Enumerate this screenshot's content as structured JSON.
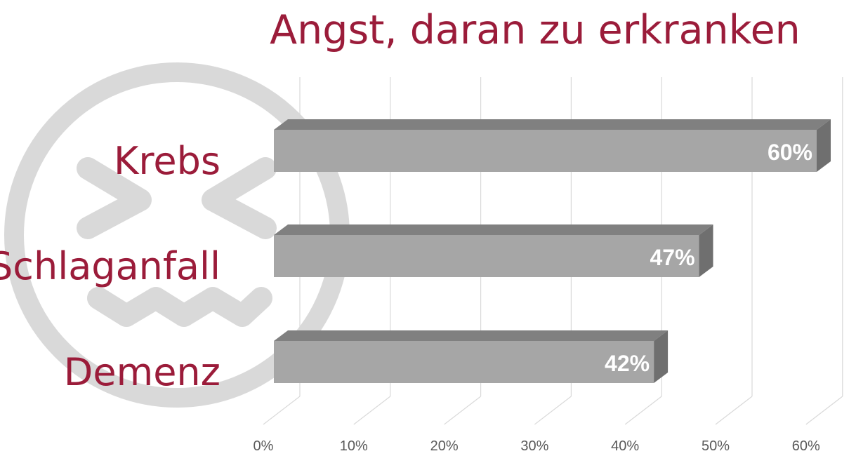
{
  "chart_data": {
    "type": "bar",
    "orientation": "horizontal",
    "style": "3d",
    "title": "Angst, daran zu erkranken",
    "categories": [
      "Krebs",
      "Schlaganfall",
      "Demenz"
    ],
    "values": [
      60,
      47,
      42
    ],
    "data_labels": [
      "60%",
      "47%",
      "42%"
    ],
    "x_ticks": [
      "0%",
      "10%",
      "20%",
      "30%",
      "40%",
      "50%",
      "60%"
    ],
    "xlim": [
      0,
      60
    ],
    "grid": true,
    "colors": {
      "title": "#9b1c3a",
      "category_label": "#9b1c3a",
      "bar_front": "#a6a6a6",
      "bar_top": "#808080",
      "bar_side": "#6f6f6f",
      "data_label": "#ffffff",
      "grid": "#d9d9d9",
      "tick_label": "#595959",
      "background_icon": "#d9d9d9"
    }
  },
  "background_icon": {
    "name": "grimacing-face-icon"
  }
}
